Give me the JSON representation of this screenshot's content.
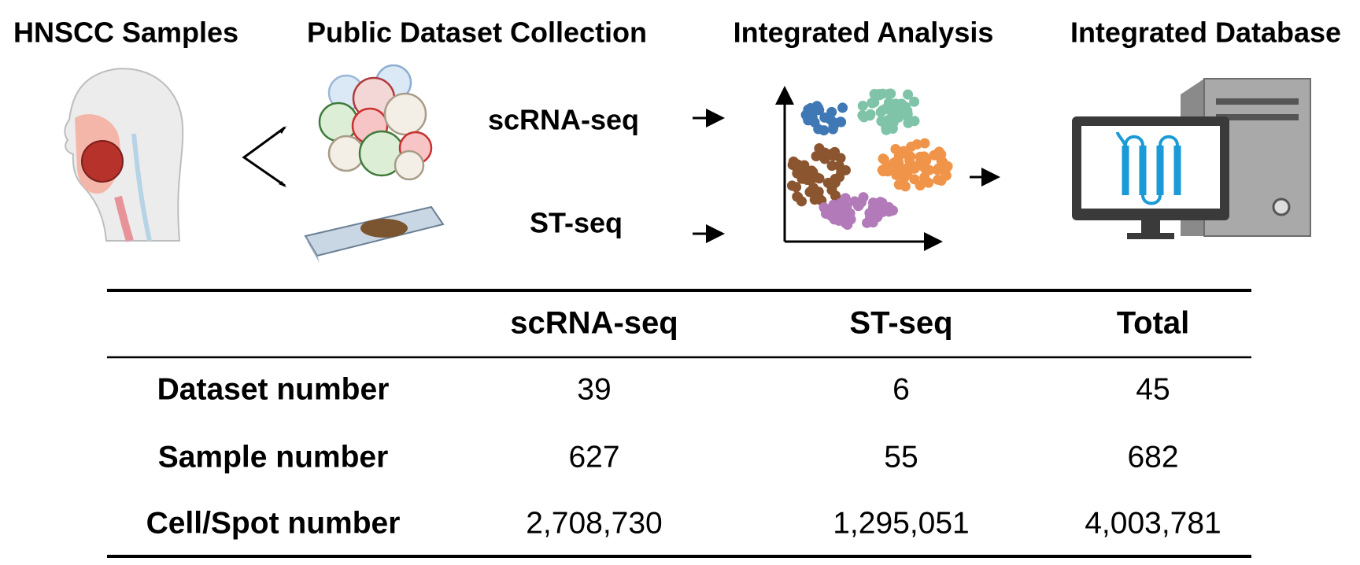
{
  "stages": [
    {
      "title": "HNSCC Samples"
    },
    {
      "title": "Public Dataset Collection"
    },
    {
      "title": "Integrated Analysis"
    },
    {
      "title": "Integrated Database"
    }
  ],
  "data_types": [
    "scRNA-seq",
    "ST-seq"
  ],
  "table": {
    "header": [
      "scRNA-seq",
      "ST-seq",
      "Total"
    ],
    "rows": [
      {
        "label": "Dataset number",
        "values": [
          "39",
          "6",
          "45"
        ]
      },
      {
        "label": "Sample number",
        "values": [
          "627",
          "55",
          "682"
        ]
      },
      {
        "label": "Cell/Spot number",
        "values": [
          "2,708,730",
          "1,295,051",
          "4,003,781"
        ]
      }
    ]
  }
}
